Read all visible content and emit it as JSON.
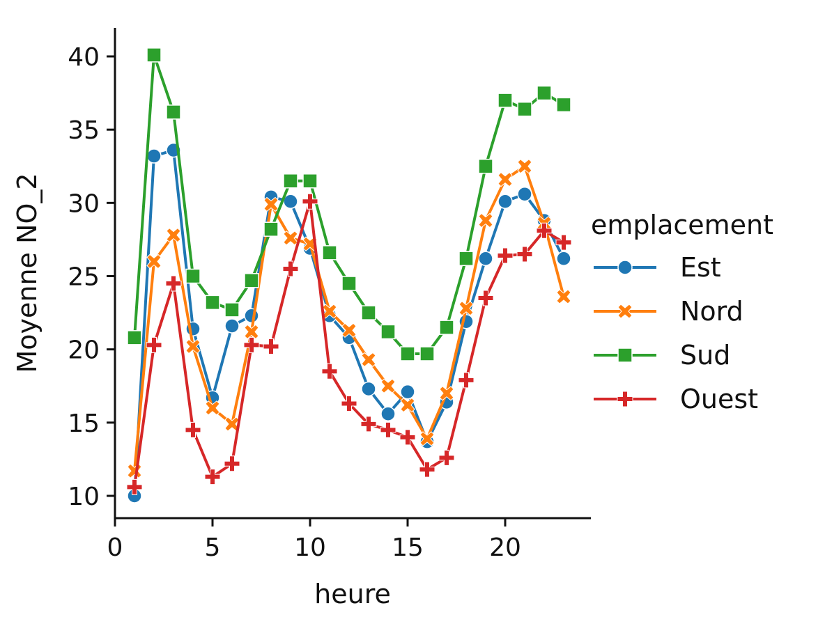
{
  "chart_data": {
    "type": "line",
    "title": "",
    "xlabel": "heure",
    "ylabel": "Moyenne NO_2",
    "xlim": [
      0,
      24
    ],
    "ylim": [
      9,
      42
    ],
    "xticks": [
      0,
      5,
      10,
      15,
      20
    ],
    "yticks": [
      10,
      15,
      20,
      25,
      30,
      35,
      40
    ],
    "legend": {
      "title": "emplacement",
      "placement": "center-right-outside"
    },
    "x": [
      1,
      2,
      3,
      4,
      5,
      6,
      7,
      8,
      9,
      10,
      11,
      12,
      13,
      14,
      15,
      16,
      17,
      18,
      19,
      20,
      21,
      22,
      23
    ],
    "series": [
      {
        "name": "Est",
        "color": "#1f77b4",
        "marker": "circle",
        "values": [
          10.0,
          33.2,
          33.6,
          21.4,
          16.7,
          21.6,
          22.3,
          30.4,
          30.1,
          26.9,
          22.3,
          20.8,
          17.3,
          15.6,
          17.1,
          13.7,
          16.4,
          21.9,
          26.2,
          30.1,
          30.6,
          28.8,
          26.2
        ]
      },
      {
        "name": "Nord",
        "color": "#ff7f0e",
        "marker": "x",
        "values": [
          11.7,
          26.0,
          27.8,
          20.2,
          16.0,
          14.9,
          21.2,
          29.9,
          27.6,
          27.2,
          22.6,
          21.3,
          19.3,
          17.5,
          16.2,
          13.9,
          17.0,
          22.8,
          28.8,
          31.6,
          32.5,
          28.6,
          23.6
        ]
      },
      {
        "name": "Sud",
        "color": "#2ca02c",
        "marker": "square",
        "values": [
          20.8,
          40.1,
          36.2,
          25.0,
          23.2,
          22.7,
          24.7,
          28.2,
          31.5,
          31.5,
          26.6,
          24.5,
          22.5,
          21.2,
          19.7,
          19.7,
          21.5,
          26.2,
          32.5,
          37.0,
          36.4,
          37.5,
          36.7
        ]
      },
      {
        "name": "Ouest",
        "color": "#d62728",
        "marker": "plus",
        "values": [
          10.6,
          20.3,
          24.5,
          14.5,
          11.3,
          12.2,
          20.3,
          20.2,
          25.5,
          30.1,
          18.5,
          16.3,
          14.9,
          14.5,
          14.0,
          11.8,
          12.6,
          17.9,
          23.5,
          26.4,
          26.5,
          28.1,
          27.3
        ]
      }
    ]
  }
}
